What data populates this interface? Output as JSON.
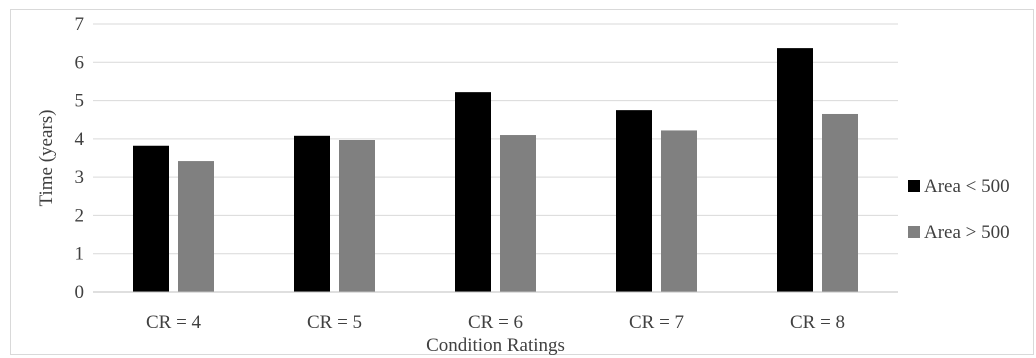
{
  "chart_data": {
    "type": "bar",
    "title": "",
    "xlabel": "Condition Ratings",
    "ylabel": "Time (years)",
    "ylim": [
      0,
      7
    ],
    "yticks": [
      "0",
      "1",
      "2",
      "3",
      "4",
      "5",
      "6",
      "7"
    ],
    "categories": [
      "CR = 4",
      "CR = 5",
      "CR = 6",
      "CR = 7",
      "CR = 8"
    ],
    "series": [
      {
        "name": "Area < 500",
        "values": [
          3.82,
          4.08,
          5.22,
          4.75,
          6.37
        ],
        "color": "#000000"
      },
      {
        "name": "Area > 500",
        "values": [
          3.42,
          3.97,
          4.1,
          4.22,
          4.65
        ],
        "color": "#808080"
      }
    ],
    "grid": true,
    "gridline_color": "#d9d9d9",
    "legend_position": "right"
  }
}
